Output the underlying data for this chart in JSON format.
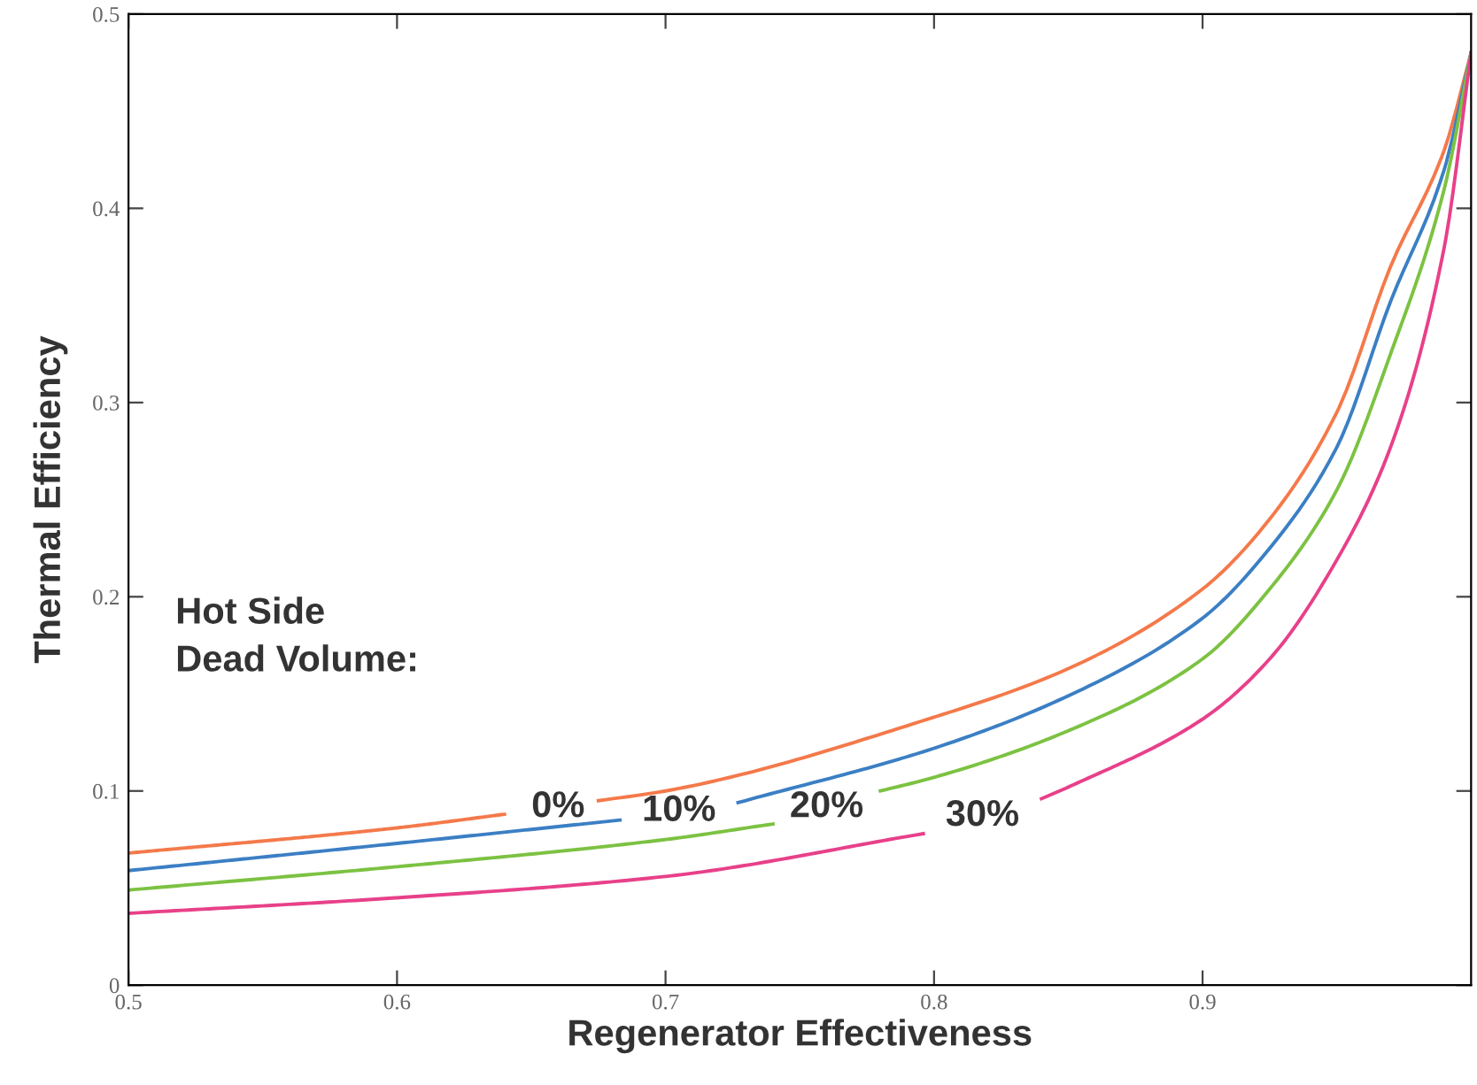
{
  "chart_data": {
    "type": "line",
    "xlabel": "Regenerator Effectiveness",
    "ylabel": "Thermal Efficiency",
    "xlim": [
      0.5,
      1.0
    ],
    "ylim": [
      0,
      0.5
    ],
    "xticks": [
      0.5,
      0.6,
      0.7,
      0.8,
      0.9
    ],
    "yticks": [
      0,
      0.1,
      0.2,
      0.3,
      0.4,
      0.5
    ],
    "grid": false,
    "legend": false,
    "line_style": "solid",
    "marker": "none",
    "annotations": [
      "Hot Side\nDead Volume:",
      "0%",
      "10%",
      "20%",
      "30%"
    ],
    "series": [
      {
        "color": "#f4794a",
        "x": [
          0.5,
          0.6,
          0.64,
          0.66,
          0.675,
          0.7,
          0.8,
          0.85,
          0.9,
          0.925,
          0.95,
          0.97,
          0.99,
          1.0
        ],
        "values": [
          0.068,
          0.081,
          0.088,
          null,
          0.095,
          0.1,
          0.138,
          0.163,
          0.204,
          0.24,
          0.295,
          0.37,
          0.43,
          0.48
        ]
      },
      {
        "color": "#3b7fc4",
        "x": [
          0.5,
          0.6,
          0.683,
          0.705,
          0.727,
          0.8,
          0.85,
          0.9,
          0.925,
          0.95,
          0.97,
          0.99,
          1.0
        ],
        "values": [
          0.059,
          0.073,
          0.085,
          null,
          0.094,
          0.122,
          0.149,
          0.189,
          0.225,
          0.277,
          0.352,
          0.42,
          0.48
        ]
      },
      {
        "color": "#7cc242",
        "x": [
          0.5,
          0.6,
          0.7,
          0.74,
          0.76,
          0.78,
          0.8,
          0.85,
          0.9,
          0.925,
          0.95,
          0.97,
          0.99,
          1.0
        ],
        "values": [
          0.049,
          0.061,
          0.075,
          0.083,
          null,
          0.1,
          0.107,
          0.131,
          0.168,
          0.204,
          0.255,
          0.325,
          0.41,
          0.48
        ]
      },
      {
        "color": "#e8408a",
        "x": [
          0.5,
          0.6,
          0.7,
          0.796,
          0.818,
          0.84,
          0.85,
          0.9,
          0.925,
          0.95,
          0.97,
          0.99,
          1.0
        ],
        "values": [
          0.037,
          0.045,
          0.056,
          0.078,
          null,
          0.096,
          0.102,
          0.137,
          0.168,
          0.219,
          0.277,
          0.38,
          0.48
        ]
      }
    ]
  }
}
